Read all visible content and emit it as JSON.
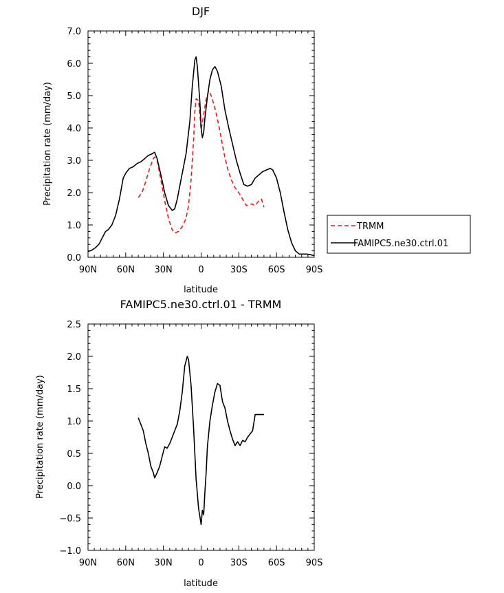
{
  "chart_data": [
    {
      "type": "line",
      "title": "DJF",
      "xlabel": "latitude",
      "ylabel": "Precipitation rate (mm/day)",
      "xlim": [
        90,
        -90
      ],
      "ylim": [
        0,
        7
      ],
      "xticks": [
        90,
        60,
        30,
        0,
        -30,
        -60,
        -90
      ],
      "xtick_labels": [
        "90N",
        "60N",
        "30N",
        "0",
        "30S",
        "60S",
        "90S"
      ],
      "yticks": [
        0,
        1,
        2,
        3,
        4,
        5,
        6,
        7
      ],
      "ytick_labels": [
        "0.0",
        "1.0",
        "2.0",
        "3.0",
        "4.0",
        "5.0",
        "6.0",
        "7.0"
      ],
      "legend": {
        "placement": "right",
        "entries": [
          "TRMM",
          "FAMIPC5.ne30.ctrl.01"
        ]
      },
      "series": [
        {
          "name": "TRMM",
          "color": "#e8181c",
          "dash": "dashed",
          "x": [
            50,
            47,
            44,
            41,
            38,
            37,
            35,
            32,
            29,
            26,
            23,
            21,
            18,
            15,
            12,
            10,
            8,
            6,
            5,
            4,
            2,
            1,
            0,
            -2,
            -4,
            -6,
            -8,
            -10,
            -12,
            -15,
            -18,
            -21,
            -24,
            -27,
            -30,
            -33,
            -36,
            -40,
            -43,
            -46,
            -48,
            -50
          ],
          "y": [
            1.85,
            2.0,
            2.35,
            2.75,
            3.05,
            3.1,
            3.0,
            2.4,
            1.75,
            1.2,
            0.85,
            0.75,
            0.8,
            0.95,
            1.2,
            1.6,
            2.4,
            3.6,
            4.5,
            4.9,
            4.85,
            4.4,
            3.95,
            4.4,
            4.9,
            5.15,
            5.0,
            4.75,
            4.45,
            3.9,
            3.25,
            2.75,
            2.4,
            2.15,
            2.0,
            1.8,
            1.6,
            1.65,
            1.6,
            1.75,
            1.8,
            1.55
          ]
        },
        {
          "name": "FAMIPC5.ne30.ctrl.01",
          "color": "#000000",
          "dash": "solid",
          "x": [
            90,
            87,
            84,
            81,
            78,
            76,
            74,
            71,
            68,
            65,
            62,
            60,
            57,
            54,
            51,
            48,
            45,
            42,
            39,
            37,
            35,
            32,
            29,
            26,
            23,
            21,
            19,
            17,
            15,
            12,
            9,
            7,
            5,
            4,
            3,
            1,
            0,
            -1,
            -2,
            -3,
            -5,
            -7,
            -9,
            -11,
            -13,
            -16,
            -19,
            -22,
            -25,
            -28,
            -31,
            -34,
            -37,
            -40,
            -43,
            -46,
            -49,
            -52,
            -55,
            -57,
            -60,
            -63,
            -66,
            -69,
            -72,
            -75,
            -78,
            -81,
            -84,
            -87,
            -90
          ],
          "y": [
            0.18,
            0.22,
            0.3,
            0.42,
            0.65,
            0.8,
            0.85,
            1.0,
            1.3,
            1.8,
            2.45,
            2.6,
            2.75,
            2.8,
            2.9,
            2.95,
            3.05,
            3.15,
            3.2,
            3.25,
            3.05,
            2.55,
            2.0,
            1.6,
            1.45,
            1.5,
            1.8,
            2.2,
            2.6,
            3.2,
            4.2,
            5.3,
            6.1,
            6.2,
            5.9,
            4.8,
            4.0,
            3.7,
            3.85,
            4.3,
            4.95,
            5.5,
            5.8,
            5.9,
            5.75,
            5.3,
            4.55,
            4.0,
            3.5,
            3.0,
            2.6,
            2.25,
            2.2,
            2.25,
            2.45,
            2.55,
            2.65,
            2.7,
            2.75,
            2.7,
            2.45,
            2.0,
            1.4,
            0.85,
            0.45,
            0.2,
            0.1,
            0.1,
            0.1,
            0.08,
            0.05
          ]
        }
      ]
    },
    {
      "type": "line",
      "title": "FAMIPC5.ne30.ctrl.01 - TRMM",
      "xlabel": "latitude",
      "ylabel": "Precipitation rate (mm/day)",
      "xlim": [
        90,
        -90
      ],
      "ylim": [
        -1,
        2.5
      ],
      "xticks": [
        90,
        60,
        30,
        0,
        -30,
        -60,
        -90
      ],
      "xtick_labels": [
        "90N",
        "60N",
        "30N",
        "0",
        "30S",
        "60S",
        "90S"
      ],
      "yticks": [
        -1,
        -0.5,
        0,
        0.5,
        1,
        1.5,
        2,
        2.5
      ],
      "ytick_labels": [
        "−1.0",
        "−0.5",
        "0.0",
        "0.5",
        "1.0",
        "1.5",
        "2.0",
        "2.5"
      ],
      "series": [
        {
          "color": "#000000",
          "dash": "solid",
          "x": [
            50,
            48,
            46,
            44,
            42,
            40,
            38,
            37,
            35,
            33,
            31,
            29,
            27,
            25,
            23,
            21,
            19,
            17,
            15,
            13,
            11,
            10,
            8,
            6,
            4,
            2,
            0,
            -1,
            -2,
            -3,
            -4,
            -5,
            -7,
            -9,
            -11,
            -13,
            -15,
            -17,
            -19,
            -21,
            -23,
            -25,
            -27,
            -29,
            -31,
            -33,
            -35,
            -37,
            -39,
            -41,
            -43,
            -45,
            -47,
            -49,
            -50
          ],
          "y": [
            1.05,
            0.95,
            0.85,
            0.65,
            0.5,
            0.3,
            0.2,
            0.12,
            0.2,
            0.3,
            0.45,
            0.6,
            0.58,
            0.65,
            0.75,
            0.85,
            0.95,
            1.15,
            1.45,
            1.85,
            2.0,
            1.95,
            1.55,
            0.9,
            0.1,
            -0.35,
            -0.6,
            -0.38,
            -0.45,
            -0.1,
            0.2,
            0.6,
            1.0,
            1.25,
            1.45,
            1.58,
            1.55,
            1.3,
            1.2,
            1.0,
            0.85,
            0.72,
            0.62,
            0.68,
            0.62,
            0.7,
            0.68,
            0.75,
            0.8,
            0.85,
            1.1,
            1.1,
            1.1,
            1.1,
            1.1
          ]
        }
      ]
    }
  ]
}
